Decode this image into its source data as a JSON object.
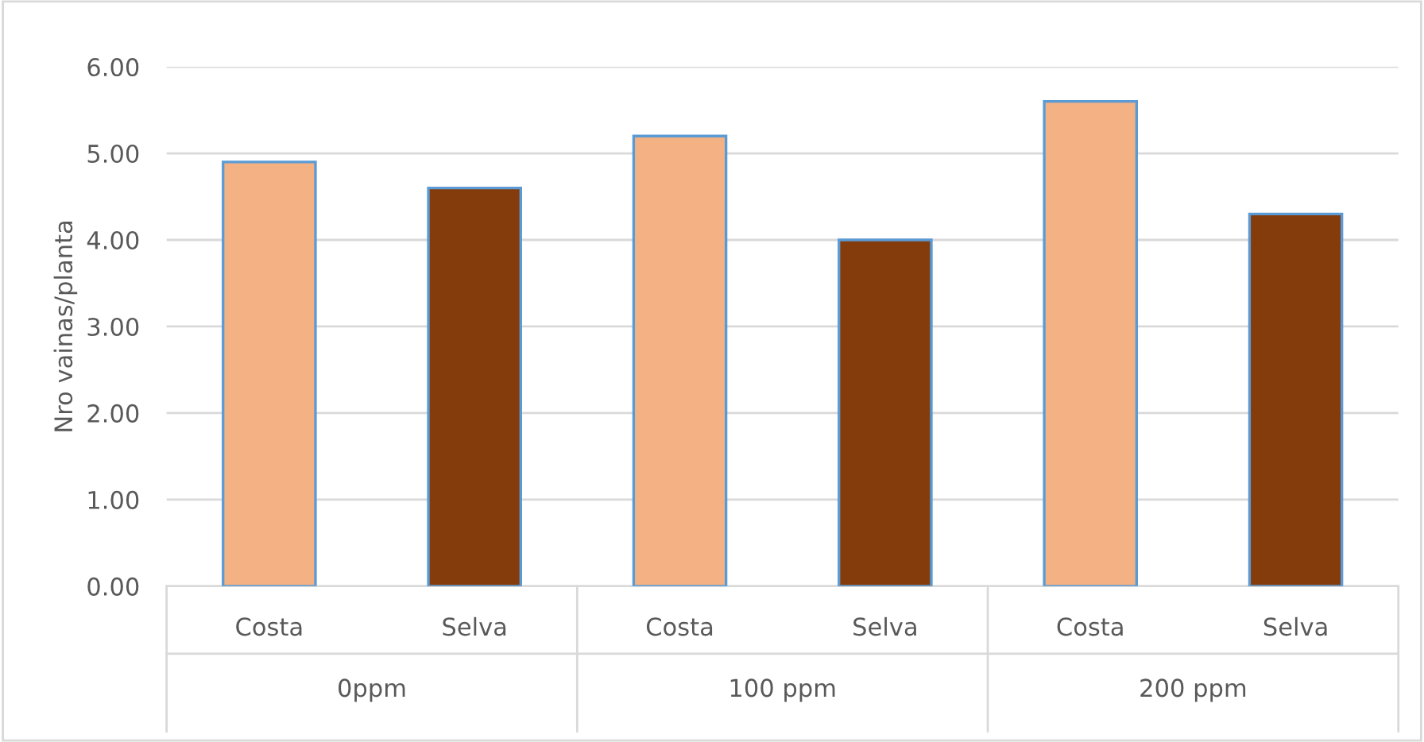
{
  "chart_data": {
    "type": "bar",
    "ylabel": "Nro vainas/planta",
    "categories": [
      "Costa",
      "Selva",
      "Costa",
      "Selva",
      "Costa",
      "Selva"
    ],
    "values": [
      4.9,
      4.6,
      5.2,
      4.0,
      5.6,
      4.3
    ],
    "colors": [
      "#f4b183",
      "#843c0c",
      "#f4b183",
      "#843c0c",
      "#f4b183",
      "#843c0c"
    ],
    "ylim": [
      0,
      6
    ],
    "yticks": [
      {
        "value": 0,
        "label": "0.00"
      },
      {
        "value": 1,
        "label": "1.00"
      },
      {
        "value": 2,
        "label": "2.00"
      },
      {
        "value": 3,
        "label": "3.00"
      },
      {
        "value": 4,
        "label": "4.00"
      },
      {
        "value": 5,
        "label": "5.00"
      },
      {
        "value": 6,
        "label": "6.00"
      }
    ],
    "annotations": [
      "0ppm",
      "100 ppm",
      "200 ppm"
    ],
    "grid": "y",
    "legend": false
  }
}
